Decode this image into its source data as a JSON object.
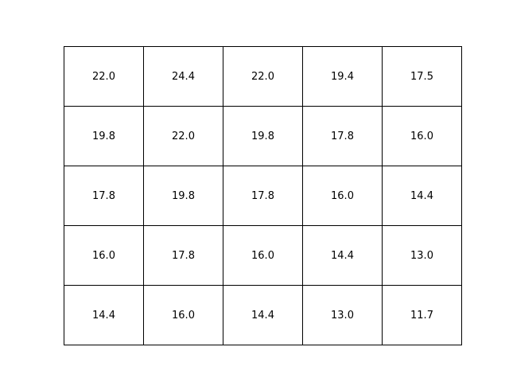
{
  "chart_data": {
    "type": "table",
    "rows": [
      [
        "22.0",
        "24.4",
        "22.0",
        "19.4",
        "17.5"
      ],
      [
        "19.8",
        "22.0",
        "19.8",
        "17.8",
        "16.0"
      ],
      [
        "17.8",
        "19.8",
        "17.8",
        "16.0",
        "14.4"
      ],
      [
        "16.0",
        "17.8",
        "16.0",
        "14.4",
        "13.0"
      ],
      [
        "14.4",
        "16.0",
        "14.4",
        "13.0",
        "11.7"
      ]
    ],
    "grid": true,
    "colors": {
      "border": "#000000",
      "text": "#000000",
      "background": "#ffffff"
    }
  }
}
